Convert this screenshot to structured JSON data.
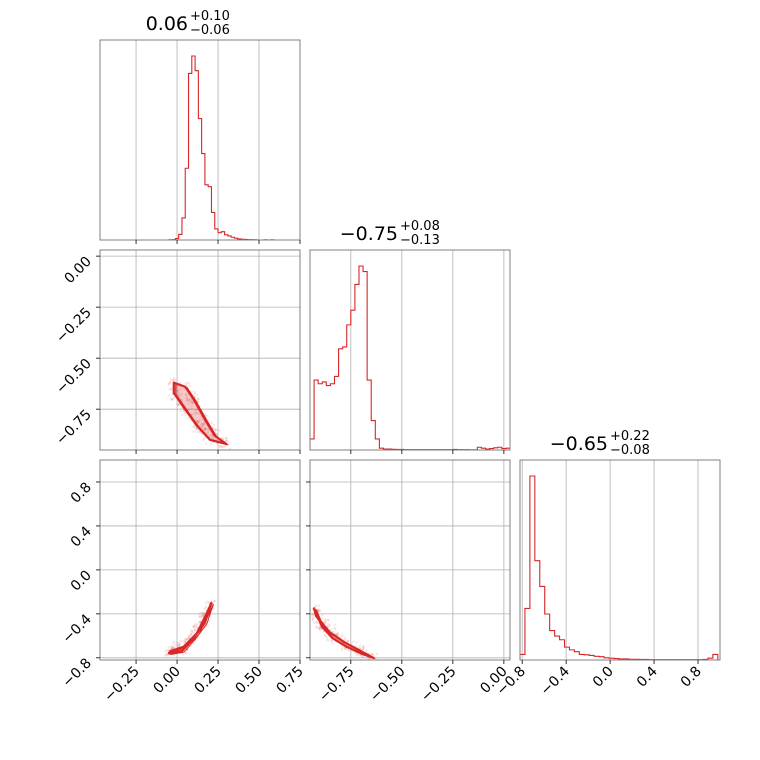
{
  "colors": {
    "series": "#d62728",
    "grid": "#b0b0b0",
    "frame": "#808080"
  },
  "chart_data": {
    "type": "corner",
    "xlabel": "",
    "ylabel": "",
    "grid": true,
    "parameters": [
      {
        "range": [
          -0.47,
          0.75
        ],
        "ticks": [
          -0.25,
          0.0,
          0.25,
          0.5,
          0.75
        ],
        "tick_labels": [
          "−0.25",
          "0.00",
          "0.25",
          "0.50",
          "0.75"
        ],
        "title": {
          "value": "0.06",
          "plus": "+0.10",
          "minus": "−0.06"
        }
      },
      {
        "range": [
          -0.95,
          0.03
        ],
        "ticks": [
          -0.75,
          -0.5,
          -0.25,
          0.0
        ],
        "tick_labels": [
          "−0.75",
          "−0.50",
          "−0.25",
          "0.00"
        ],
        "title": {
          "value": "−0.75",
          "plus": "+0.08",
          "minus": "−0.13"
        }
      },
      {
        "range": [
          -0.82,
          1.0
        ],
        "ticks": [
          -0.8,
          -0.4,
          0.0,
          0.4,
          0.8
        ],
        "tick_labels": [
          "−0.8",
          "−0.4",
          "0.0",
          "0.4",
          "0.8"
        ],
        "title": {
          "value": "−0.65",
          "plus": "+0.22",
          "minus": "−0.08"
        }
      }
    ],
    "histograms": [
      {
        "param": 0,
        "bin_start": -0.25,
        "bin_width": 0.02,
        "counts": [
          0,
          0,
          0,
          0,
          0,
          0,
          0,
          0,
          0,
          0,
          1,
          2,
          8,
          30,
          120,
          390,
          905,
          1000,
          920,
          660,
          470,
          300,
          290,
          150,
          60,
          40,
          45,
          28,
          22,
          15,
          10,
          6,
          4,
          3,
          2,
          2,
          1,
          0,
          0,
          1,
          0,
          1,
          0
        ]
      },
      {
        "param": 1,
        "bin_start": -0.95,
        "bin_width": 0.02,
        "counts": [
          60,
          380,
          360,
          370,
          350,
          360,
          400,
          550,
          560,
          680,
          760,
          900,
          1000,
          970,
          380,
          160,
          60,
          10,
          5,
          5,
          4,
          3,
          3,
          2,
          2,
          2,
          2,
          2,
          2,
          2,
          2,
          2,
          2,
          2,
          2,
          3,
          2,
          2,
          2,
          1,
          1,
          15,
          10,
          5,
          8,
          12,
          15,
          8,
          10
        ]
      },
      {
        "param": 2,
        "bin_start": -0.82,
        "bin_width": 0.045,
        "counts": [
          30,
          280,
          1000,
          540,
          400,
          250,
          160,
          130,
          110,
          70,
          55,
          45,
          30,
          28,
          25,
          20,
          18,
          12,
          10,
          8,
          6,
          6,
          4,
          4,
          3,
          3,
          2,
          2,
          2,
          2,
          2,
          2,
          2,
          2,
          2,
          2,
          2,
          3,
          10,
          30
        ]
      }
    ],
    "pair_panels": [
      {
        "x_param": 0,
        "y_param": 1,
        "contour_path": [
          [
            -0.02,
            -0.62
          ],
          [
            0.05,
            -0.64
          ],
          [
            0.1,
            -0.7
          ],
          [
            0.17,
            -0.8
          ],
          [
            0.23,
            -0.88
          ],
          [
            0.3,
            -0.92
          ],
          [
            0.2,
            -0.9
          ],
          [
            0.12,
            -0.83
          ],
          [
            0.04,
            -0.74
          ],
          [
            -0.02,
            -0.67
          ]
        ]
      },
      {
        "x_param": 0,
        "y_param": 2,
        "contour_path": [
          [
            -0.05,
            -0.76
          ],
          [
            0.03,
            -0.74
          ],
          [
            0.1,
            -0.62
          ],
          [
            0.17,
            -0.48
          ],
          [
            0.21,
            -0.3
          ],
          [
            0.18,
            -0.4
          ],
          [
            0.12,
            -0.58
          ],
          [
            0.04,
            -0.7
          ],
          [
            -0.04,
            -0.74
          ]
        ]
      },
      {
        "x_param": 1,
        "y_param": 2,
        "contour_path": [
          [
            -0.93,
            -0.35
          ],
          [
            -0.89,
            -0.52
          ],
          [
            -0.84,
            -0.62
          ],
          [
            -0.77,
            -0.7
          ],
          [
            -0.7,
            -0.76
          ],
          [
            -0.64,
            -0.8
          ],
          [
            -0.7,
            -0.74
          ],
          [
            -0.78,
            -0.66
          ],
          [
            -0.86,
            -0.56
          ],
          [
            -0.92,
            -0.42
          ]
        ]
      }
    ]
  }
}
